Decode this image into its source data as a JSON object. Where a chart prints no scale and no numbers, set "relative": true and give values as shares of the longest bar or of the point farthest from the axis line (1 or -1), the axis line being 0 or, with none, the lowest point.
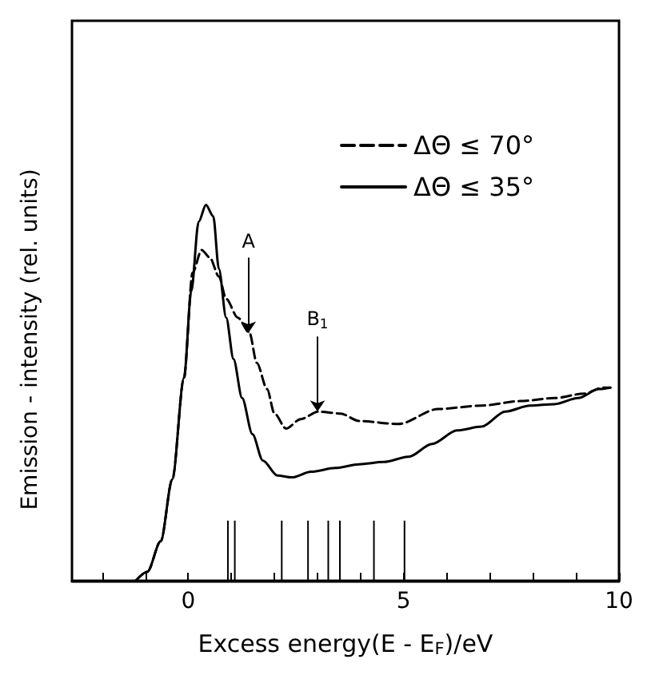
{
  "chart_data": {
    "type": "line",
    "relative": true,
    "xlabel": "Excess energy(E - E$_{F}$)/eV",
    "ylabel": "Emission - intensity (rel. units)",
    "xlim": [
      -2.7,
      10
    ],
    "xticks": [
      {
        "value": -2,
        "label": null
      },
      {
        "value": -1,
        "label": null
      },
      0,
      {
        "value": 1,
        "label": null
      },
      {
        "value": 2,
        "label": null
      },
      {
        "value": 3,
        "label": null
      },
      {
        "value": 4,
        "label": null
      },
      5,
      {
        "value": 6,
        "label": null
      },
      {
        "value": 7,
        "label": null
      },
      {
        "value": 8,
        "label": null
      },
      {
        "value": 9,
        "label": null
      },
      10
    ],
    "legend": "top right",
    "marker": "none",
    "grid": false,
    "series": [
      {
        "name": "ΔΘ ≤ 70°",
        "color": "#000000",
        "line_style": "dashed",
        "x": [
          -1.22,
          -0.95,
          -0.64,
          -0.37,
          -0.1,
          0.1,
          0.31,
          0.5,
          0.71,
          0.88,
          1.15,
          1.42,
          1.59,
          1.83,
          2.0,
          2.27,
          2.61,
          3.02,
          3.53,
          3.97,
          4.88,
          5.8,
          6.81,
          7.7,
          8.5,
          9.19,
          9.63,
          9.8
        ],
        "values": [
          0,
          0.024,
          0.105,
          0.27,
          0.54,
          0.82,
          0.88,
          0.86,
          0.81,
          0.75,
          0.7,
          0.66,
          0.58,
          0.51,
          0.445,
          0.405,
          0.43,
          0.45,
          0.445,
          0.425,
          0.417,
          0.457,
          0.466,
          0.478,
          0.486,
          0.498,
          0.514,
          0.514
        ]
      },
      {
        "name": "ΔΘ ≤ 35°",
        "color": "#000000",
        "line_style": "solid",
        "x": [
          -1.22,
          -0.95,
          -0.64,
          -0.37,
          -0.1,
          0.07,
          0.24,
          0.41,
          0.58,
          0.71,
          0.88,
          1.05,
          1.25,
          1.49,
          1.73,
          2.07,
          2.41,
          2.85,
          3.42,
          3.97,
          4.54,
          5.12,
          5.66,
          6.24,
          6.81,
          7.36,
          7.93,
          8.5,
          9.05,
          9.53,
          9.8
        ],
        "values": [
          0,
          0.024,
          0.105,
          0.27,
          0.54,
          0.77,
          0.955,
          1,
          0.97,
          0.83,
          0.7,
          0.59,
          0.486,
          0.39,
          0.32,
          0.28,
          0.275,
          0.29,
          0.3,
          0.31,
          0.316,
          0.33,
          0.364,
          0.4,
          0.41,
          0.45,
          0.466,
          0.47,
          0.486,
          0.51,
          0.514
        ]
      },
      {
        "type": "bar",
        "color": "#000000",
        "x": [
          0.92,
          1.08,
          2.17,
          2.78,
          3.25,
          3.52,
          4.31,
          5.02
        ],
        "values": [
          0.16,
          0.16,
          0.16,
          0.16,
          0.16,
          0.16,
          0.16,
          0.16
        ]
      }
    ],
    "annotations": [
      {
        "text": "A",
        "x": 1.4,
        "y": 0.66
      },
      {
        "text": "B$_{1}$",
        "x": 3.0,
        "y": 0.45
      }
    ]
  }
}
